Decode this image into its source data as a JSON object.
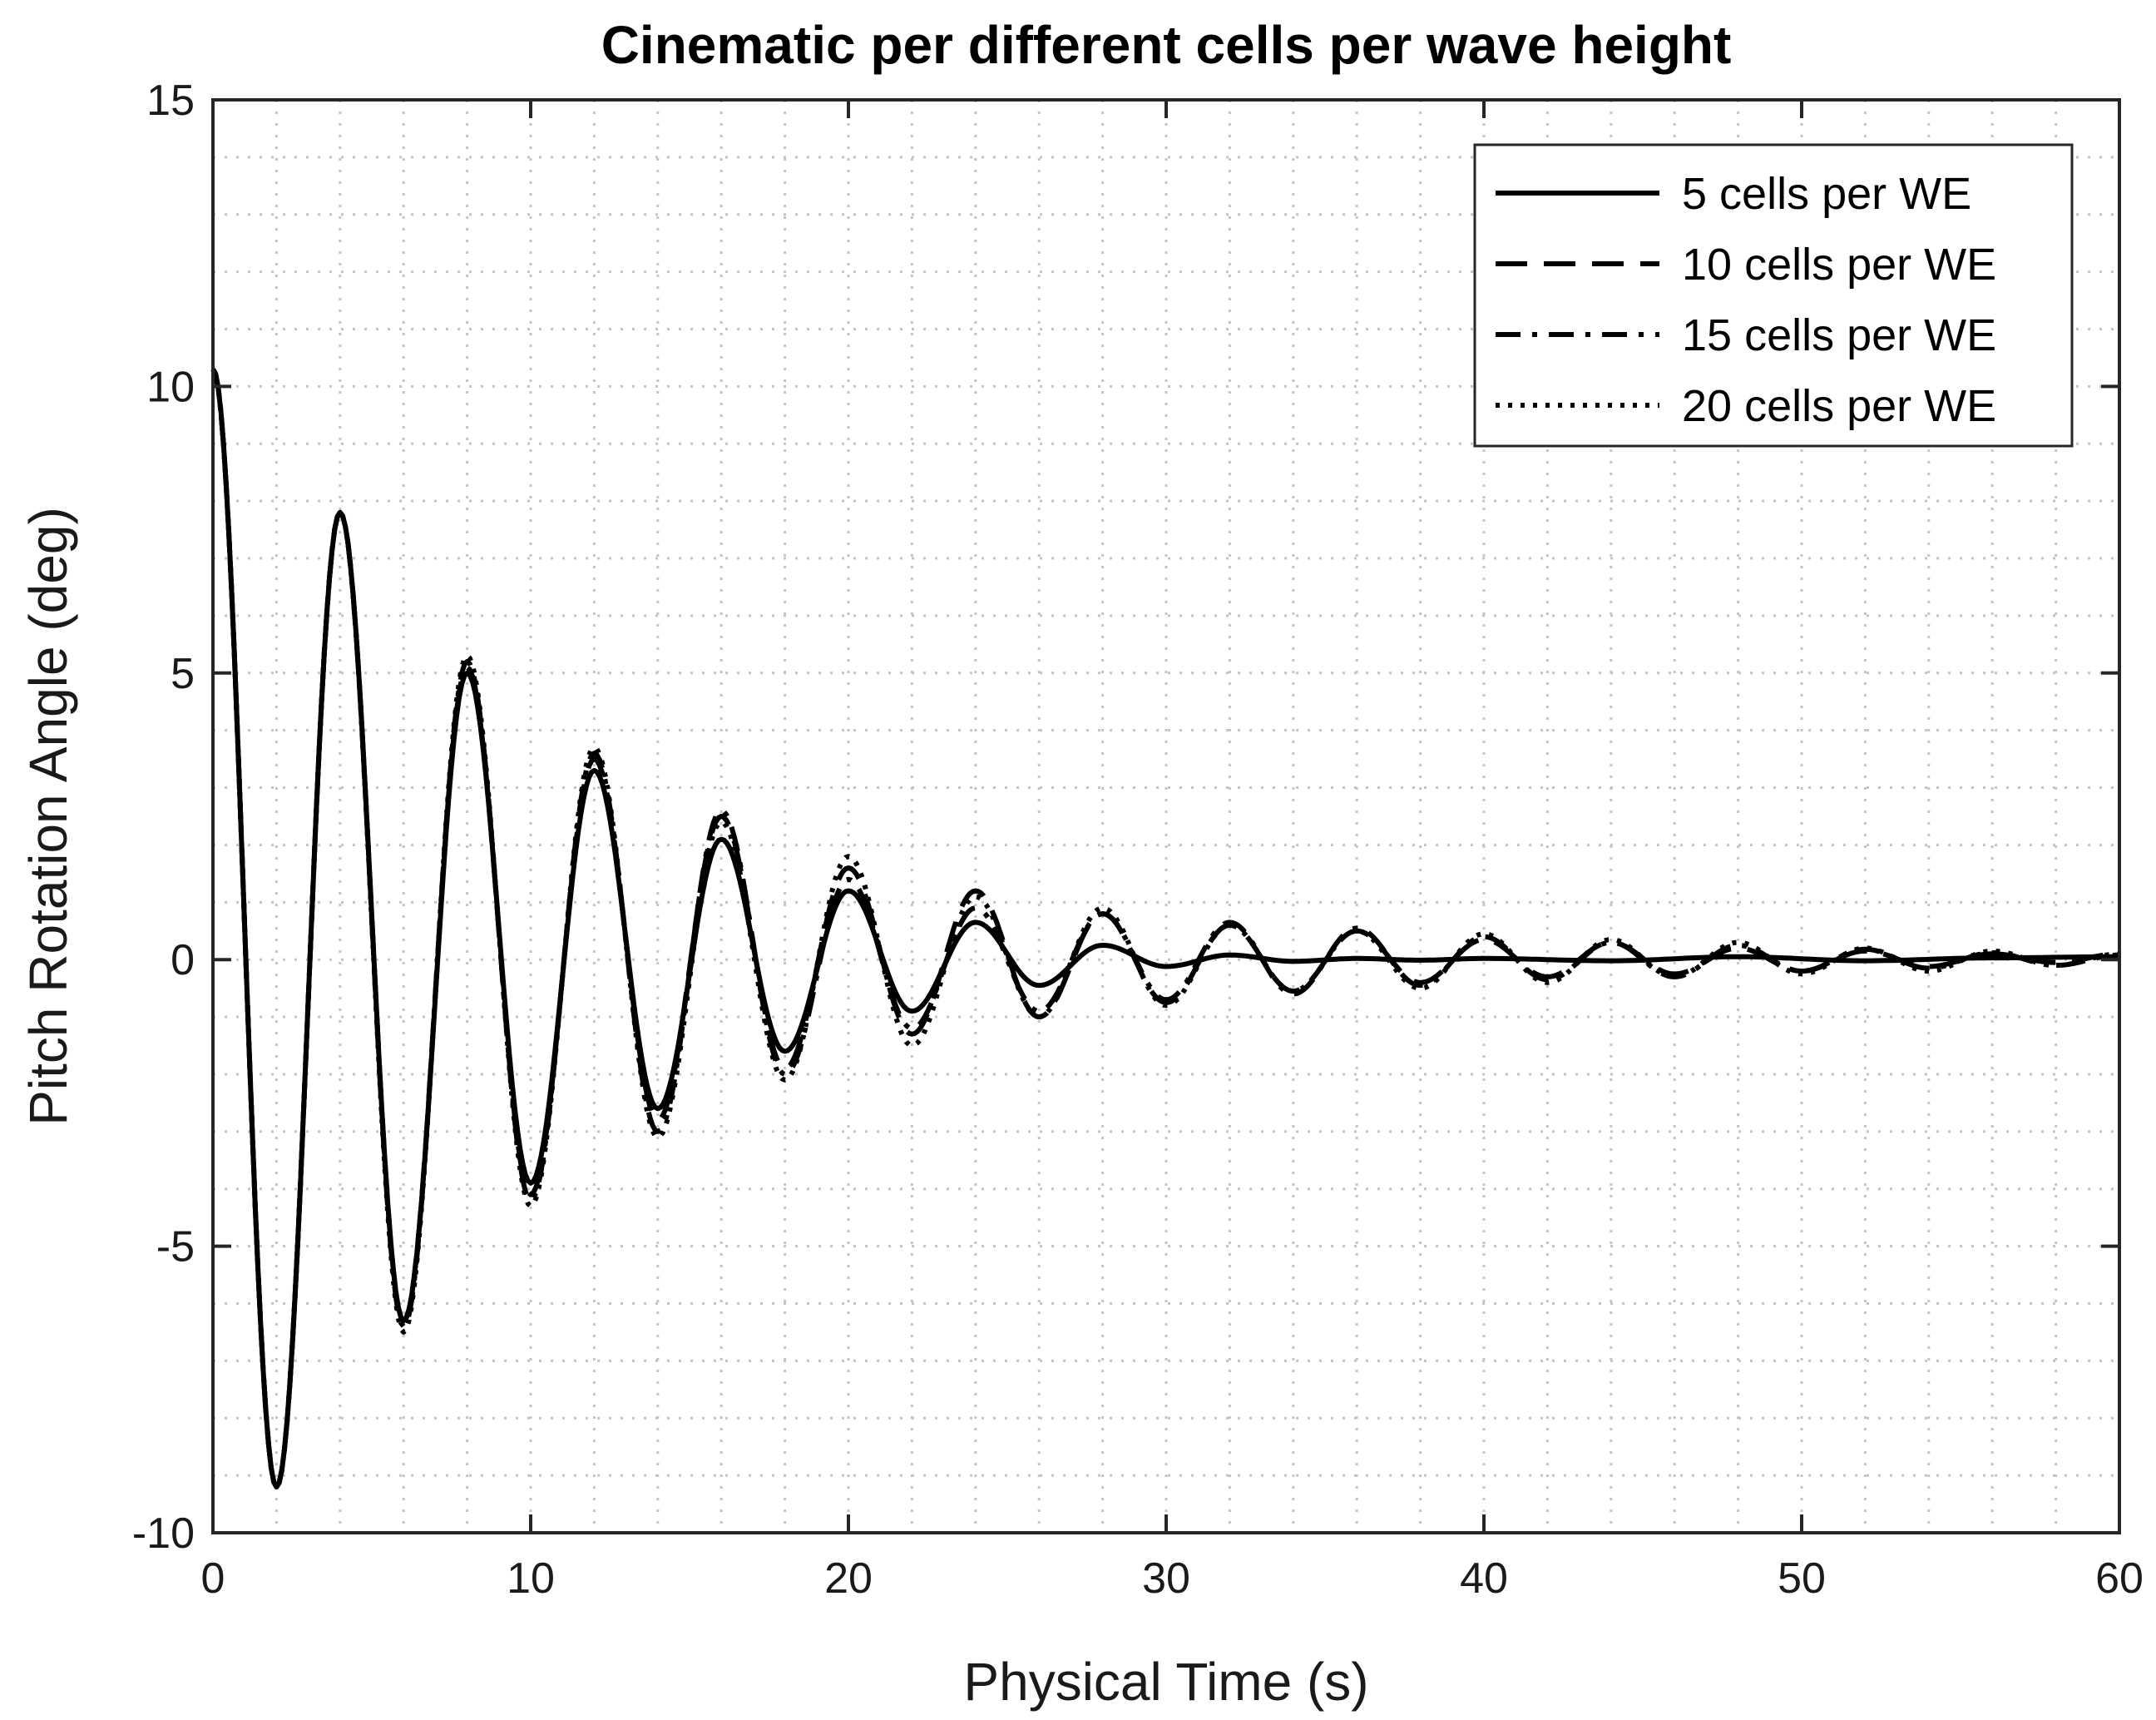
{
  "chart_data": {
    "type": "line",
    "title": "Cinematic per different cells per wave height",
    "xlabel": "Physical Time (s)",
    "ylabel": "Pitch Rotation Angle (deg)",
    "xlim": [
      0,
      60
    ],
    "ylim": [
      -10,
      15
    ],
    "xticks": [
      0,
      10,
      20,
      30,
      40,
      50,
      60
    ],
    "xtick_labels": [
      "0",
      "10",
      "20",
      "30",
      "40",
      "50",
      "60"
    ],
    "yticks": [
      -10,
      -5,
      0,
      5,
      10,
      15
    ],
    "ytick_labels": [
      "-10",
      "-5",
      "0",
      "5",
      "10",
      "15"
    ],
    "grid": true,
    "minor_grid": true,
    "legend_position": "top-right",
    "series": [
      {
        "name": "5 cells per WE",
        "style": "solid",
        "t": [
          0,
          2,
          4,
          6,
          8,
          10,
          12,
          14,
          16,
          18,
          20,
          22,
          24,
          26,
          28,
          30,
          32,
          34,
          36,
          38,
          40,
          44,
          48,
          52,
          56,
          60
        ],
        "values": [
          10.3,
          -9.2,
          7.8,
          -6.3,
          5.0,
          -3.9,
          3.3,
          -2.6,
          2.1,
          -1.6,
          1.2,
          -0.9,
          0.65,
          -0.45,
          0.25,
          -0.12,
          0.08,
          -0.03,
          0.02,
          -0.01,
          0.02,
          -0.02,
          0.05,
          -0.02,
          0.03,
          0.05
        ]
      },
      {
        "name": "10 cells per WE",
        "style": "dashed",
        "t": [
          0,
          2,
          4,
          6,
          8,
          10,
          12,
          14,
          16,
          18,
          20,
          22,
          24,
          26,
          28,
          30,
          32,
          34,
          36,
          38,
          40,
          42,
          44,
          46,
          48,
          50,
          52,
          54,
          56,
          58,
          60
        ],
        "values": [
          10.3,
          -9.2,
          7.8,
          -6.3,
          5.1,
          -4.1,
          3.5,
          -2.8,
          2.5,
          -1.9,
          1.6,
          -1.3,
          1.2,
          -1.0,
          0.8,
          -0.75,
          0.6,
          -0.55,
          0.5,
          -0.4,
          0.35,
          -0.3,
          0.3,
          -0.25,
          0.2,
          -0.2,
          0.15,
          -0.12,
          0.1,
          -0.05,
          0.1
        ]
      },
      {
        "name": "15 cells per WE",
        "style": "dashdot",
        "t": [
          0,
          2,
          4,
          6,
          8,
          10,
          12,
          14,
          16,
          18,
          20,
          22,
          24,
          26,
          28,
          30,
          32,
          34,
          36,
          38,
          40,
          42,
          44,
          46,
          48,
          50,
          52,
          54,
          56,
          58,
          60
        ],
        "values": [
          10.3,
          -9.2,
          7.8,
          -6.4,
          5.2,
          -4.2,
          3.6,
          -3.0,
          2.6,
          -2.0,
          1.4,
          -1.2,
          0.9,
          -0.9,
          0.8,
          -0.7,
          0.65,
          -0.6,
          0.55,
          -0.45,
          0.4,
          -0.35,
          0.3,
          -0.3,
          0.25,
          -0.2,
          0.18,
          -0.15,
          0.12,
          -0.1,
          0.08
        ]
      },
      {
        "name": "20 cells per WE",
        "style": "dotted",
        "t": [
          0,
          2,
          4,
          6,
          8,
          10,
          12,
          14,
          16,
          18,
          20,
          22,
          24,
          26,
          28,
          30,
          32,
          34,
          36,
          38,
          40,
          42,
          44,
          46,
          48,
          50,
          52,
          54,
          56,
          58,
          60
        ],
        "values": [
          10.3,
          -9.2,
          7.8,
          -6.5,
          5.3,
          -4.3,
          3.7,
          -3.1,
          2.4,
          -2.1,
          1.8,
          -1.5,
          1.1,
          -1.0,
          0.9,
          -0.8,
          0.6,
          -0.55,
          0.5,
          -0.5,
          0.45,
          -0.4,
          0.35,
          -0.3,
          0.3,
          -0.25,
          0.2,
          -0.2,
          0.15,
          -0.1,
          0.1
        ]
      }
    ]
  }
}
